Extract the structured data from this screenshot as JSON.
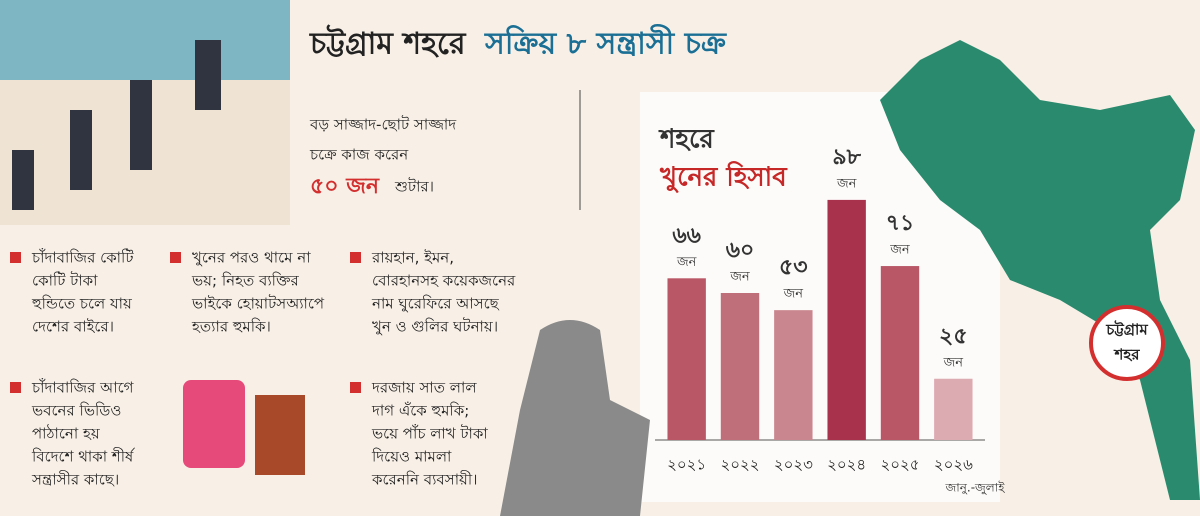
{
  "header": {
    "title_part1": "চট্টগ্রাম শহরে",
    "title_part2": "সক্রিয় ৮ সন্ত্রাসী চক্র"
  },
  "intro": {
    "lines": [
      "বড় সাজ্জাদ-ছোট সাজ্জাদ",
      "চক্রে কাজ করেন"
    ],
    "highlight": "৫০ জন",
    "tail": "শুটার।"
  },
  "bullets": [
    {
      "lines": [
        "চাঁদাবাজির কোটি",
        "কোটি টাকা",
        "হুন্ডিতে চলে যায়",
        "দেশের বাইরে।"
      ]
    },
    {
      "lines": [
        "খুনের পরও থামে না",
        "ভয়; নিহত ব্যক্তির",
        "ভাইকে হোয়াটসঅ্যাপে",
        "হত্যার হুমকি।"
      ]
    },
    {
      "lines": [
        "রায়হান, ইমন,",
        "বোরহানসহ কয়েকজনের",
        "নাম ঘুরেফিরে আসছে",
        "খুন ও গুলির ঘটনায়।"
      ]
    },
    {
      "lines": [
        "চাঁদাবাজির আগে",
        "ভবনের ভিডিও",
        "পাঠানো হয়",
        "বিদেশে থাকা শীর্ষ",
        "সন্ত্রাসীর কাছে।"
      ]
    },
    {
      "lines": [
        "দরজায় সাত লাল",
        "দাগ এঁকে হুমকি;",
        "ভয়ে পাঁচ লাখ টাকা",
        "দিয়েও মামলা",
        "করেননি ব্যবসায়ী।"
      ]
    }
  ],
  "map": {
    "label_lines": [
      "চট্টগ্রাম",
      "শহর"
    ]
  },
  "chart_data": {
    "type": "bar",
    "title_part1": "শহরে",
    "title_part2": "খুনের হিসাব",
    "categories": [
      "২০২১",
      "২০২২",
      "২০২৩",
      "২০২৪",
      "২০২৫",
      "২০২৬"
    ],
    "values": [
      66,
      60,
      53,
      98,
      71,
      25
    ],
    "value_labels": [
      "৬৬",
      "৬০",
      "৫৩",
      "৯৮",
      "৭১",
      "২৫"
    ],
    "value_unit": "জন",
    "colors": [
      "#b95766",
      "#bf6f79",
      "#c9868f",
      "#a8314b",
      "#b95766",
      "#dcaab1"
    ],
    "annotation": "জানু.-জুলাই",
    "ylim": [
      0,
      100
    ]
  }
}
